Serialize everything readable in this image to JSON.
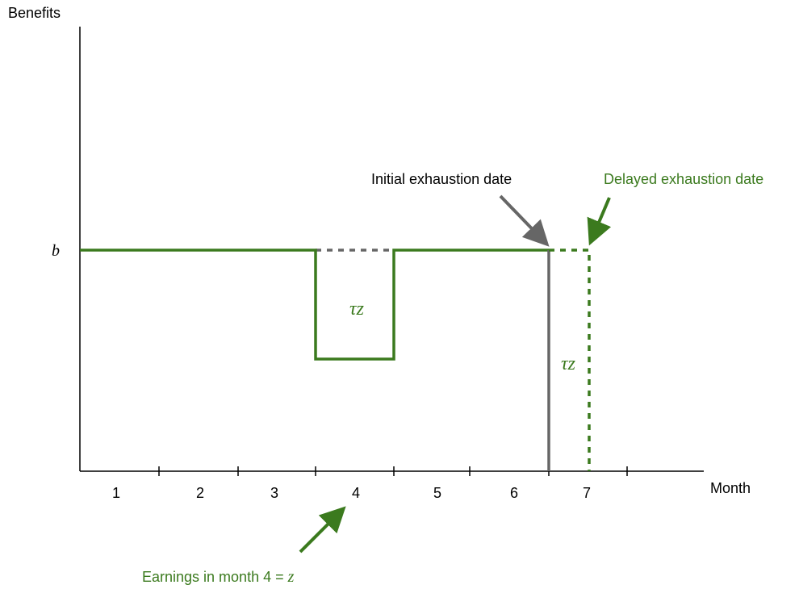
{
  "axes": {
    "y_label": "Benefits",
    "x_label": "Month",
    "level_label": "b"
  },
  "months": [
    "1",
    "2",
    "3",
    "4",
    "5",
    "6",
    "7"
  ],
  "gap_labels": [
    "τz",
    "τz"
  ],
  "annotations": {
    "initial": "Initial exhaustion date",
    "delayed": "Delayed exhaustion date",
    "earnings": {
      "text": "Earnings in month 4 =",
      "variable": "z"
    }
  }
}
